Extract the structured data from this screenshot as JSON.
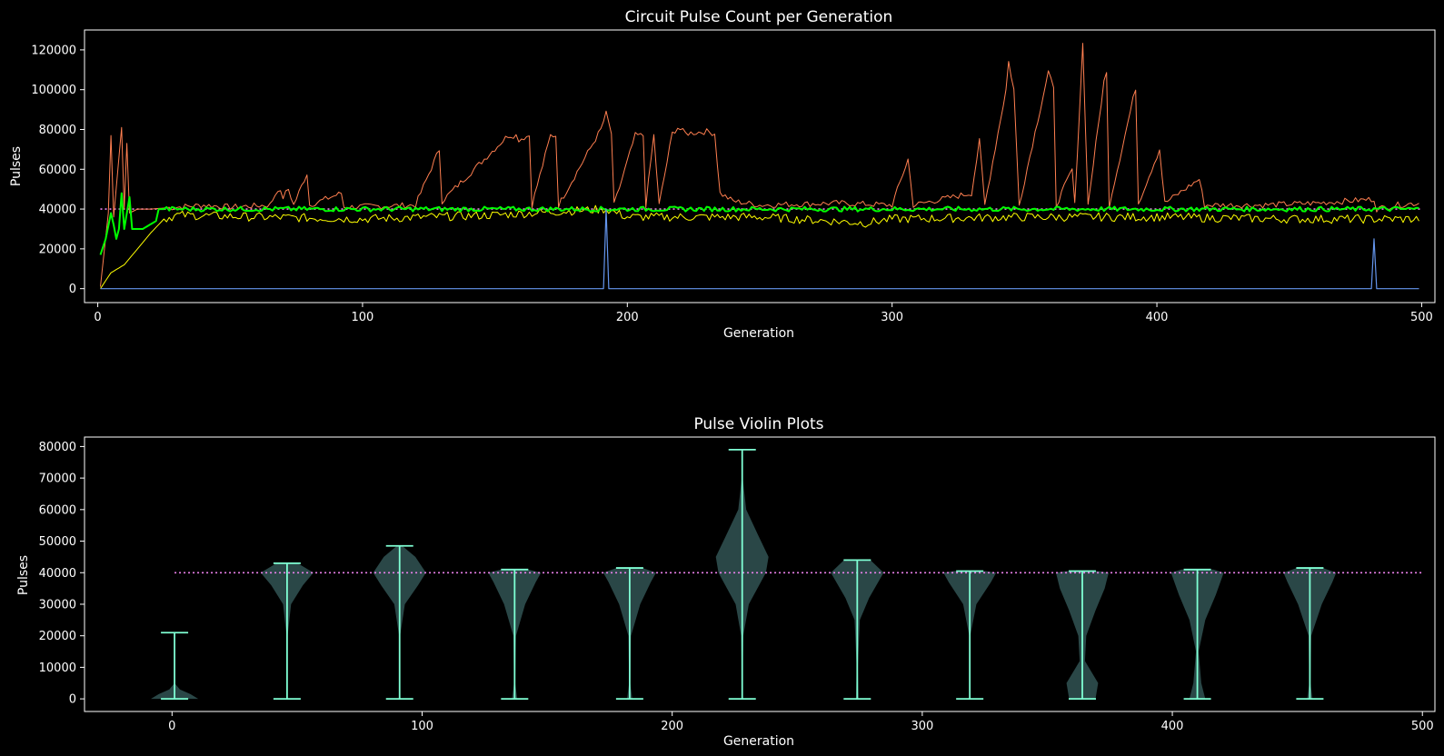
{
  "chart_data": [
    {
      "type": "line",
      "title": "Circuit Pulse Count per Generation",
      "xlabel": "Generation",
      "ylabel": "Pulses",
      "xlim": [
        -5,
        505
      ],
      "ylim": [
        -7000,
        130000
      ],
      "xticks": [
        0,
        100,
        200,
        300,
        400,
        500
      ],
      "yticks": [
        0,
        20000,
        40000,
        60000,
        80000,
        100000,
        120000
      ],
      "grid": false,
      "target_line": {
        "y": 40000,
        "x_range": [
          1,
          500
        ],
        "color": "#ee82ee",
        "style": "dotted"
      },
      "series": [
        {
          "color": "#ff7f50",
          "sample_points": [
            [
              1,
              1000
            ],
            [
              4,
              38000
            ],
            [
              5,
              77000
            ],
            [
              6,
              36000
            ],
            [
              9,
              81000
            ],
            [
              10,
              40000
            ],
            [
              11,
              73000
            ],
            [
              12,
              38000
            ],
            [
              15,
              40000
            ],
            [
              20,
              40000
            ],
            [
              30,
              41000
            ],
            [
              40,
              42000
            ],
            [
              50,
              41000
            ],
            [
              65,
              42000
            ],
            [
              68,
              50000
            ],
            [
              70,
              46000
            ],
            [
              72,
              50000
            ],
            [
              74,
              42000
            ],
            [
              79,
              58000
            ],
            [
              80,
              42000
            ],
            [
              92,
              48000
            ],
            [
              93,
              41000
            ],
            [
              120,
              42000
            ],
            [
              129,
              70000
            ],
            [
              130,
              44000
            ],
            [
              155,
              77000
            ],
            [
              158,
              77000
            ],
            [
              159,
              75000
            ],
            [
              163,
              77000
            ],
            [
              164,
              42000
            ],
            [
              171,
              77000
            ],
            [
              173,
              77000
            ],
            [
              174,
              42000
            ],
            [
              190,
              80000
            ],
            [
              192,
              88000
            ],
            [
              194,
              78000
            ],
            [
              195,
              42000
            ],
            [
              203,
              77000
            ],
            [
              206,
              77000
            ],
            [
              207,
              42000
            ],
            [
              210,
              77000
            ],
            [
              212,
              42000
            ],
            [
              217,
              78000
            ],
            [
              219,
              81000
            ],
            [
              222,
              78000
            ],
            [
              230,
              79000
            ],
            [
              233,
              78000
            ],
            [
              235,
              48000
            ],
            [
              240,
              44000
            ],
            [
              250,
              42000
            ],
            [
              280,
              43000
            ],
            [
              300,
              42000
            ],
            [
              306,
              65000
            ],
            [
              308,
              42000
            ],
            [
              330,
              48000
            ],
            [
              333,
              74000
            ],
            [
              335,
              42000
            ],
            [
              343,
              100000
            ],
            [
              344,
              114000
            ],
            [
              346,
              100000
            ],
            [
              348,
              42000
            ],
            [
              359,
              109000
            ],
            [
              361,
              100000
            ],
            [
              362,
              42000
            ],
            [
              368,
              60000
            ],
            [
              369,
              42000
            ],
            [
              372,
              123000
            ],
            [
              374,
              42000
            ],
            [
              380,
              104000
            ],
            [
              381,
              108000
            ],
            [
              382,
              42000
            ],
            [
              392,
              101000
            ],
            [
              393,
              43000
            ],
            [
              401,
              70000
            ],
            [
              403,
              43000
            ],
            [
              416,
              55000
            ],
            [
              418,
              42000
            ],
            [
              440,
              42000
            ],
            [
              460,
              43000
            ],
            [
              482,
              45000
            ],
            [
              483,
              40000
            ],
            [
              490,
              42000
            ],
            [
              499,
              43000
            ]
          ]
        },
        {
          "color": "#ffff00",
          "sample_points": [
            [
              1,
              0
            ],
            [
              5,
              8000
            ],
            [
              10,
              12000
            ],
            [
              15,
              20000
            ],
            [
              20,
              28000
            ],
            [
              25,
              35000
            ],
            [
              30,
              37000
            ],
            [
              60,
              36000
            ],
            [
              100,
              35000
            ],
            [
              150,
              37000
            ],
            [
              192,
              40000
            ],
            [
              200,
              36000
            ],
            [
              250,
              36000
            ],
            [
              290,
              33000
            ],
            [
              300,
              35000
            ],
            [
              350,
              36000
            ],
            [
              400,
              36000
            ],
            [
              450,
              35000
            ],
            [
              499,
              35000
            ]
          ]
        },
        {
          "color": "#00ff00",
          "sample_points": [
            [
              1,
              17000
            ],
            [
              3,
              25000
            ],
            [
              5,
              38000
            ],
            [
              6,
              32000
            ],
            [
              7,
              25000
            ],
            [
              8,
              30000
            ],
            [
              9,
              48000
            ],
            [
              10,
              30000
            ],
            [
              12,
              46000
            ],
            [
              13,
              30000
            ],
            [
              17,
              30000
            ],
            [
              22,
              34000
            ],
            [
              23,
              40000
            ],
            [
              30,
              40000
            ],
            [
              100,
              40000
            ],
            [
              300,
              40000
            ],
            [
              499,
              40000
            ]
          ]
        },
        {
          "color": "#6495ed",
          "sample_points": [
            [
              1,
              0
            ],
            [
              191,
              0
            ],
            [
              192,
              40000
            ],
            [
              193,
              0
            ],
            [
              481,
              0
            ],
            [
              482,
              25000
            ],
            [
              483,
              0
            ],
            [
              499,
              0
            ]
          ]
        }
      ]
    },
    {
      "type": "violin",
      "title": "Pulse Violin Plots",
      "xlabel": "Generation",
      "ylabel": "Pulses",
      "xlim": [
        -35,
        505
      ],
      "ylim": [
        -4000,
        83000
      ],
      "xticks": [
        0,
        100,
        200,
        300,
        400,
        500
      ],
      "yticks": [
        0,
        10000,
        20000,
        30000,
        40000,
        50000,
        60000,
        70000,
        80000
      ],
      "grid": false,
      "target_line": {
        "y": 40000,
        "x_range": [
          1,
          500
        ],
        "color": "#ee82ee",
        "style": "dotted"
      },
      "violins": [
        {
          "x": 1,
          "min": 0,
          "max": 21000
        },
        {
          "x": 46,
          "min": 0,
          "max": 43000
        },
        {
          "x": 91,
          "min": 0,
          "max": 48500
        },
        {
          "x": 137,
          "min": 0,
          "max": 41000
        },
        {
          "x": 183,
          "min": 0,
          "max": 41500
        },
        {
          "x": 228,
          "min": 0,
          "max": 79000
        },
        {
          "x": 274,
          "min": 0,
          "max": 44000
        },
        {
          "x": 319,
          "min": 0,
          "max": 40500
        },
        {
          "x": 364,
          "min": 0,
          "max": 40500
        },
        {
          "x": 410,
          "min": 0,
          "max": 41000
        },
        {
          "x": 455,
          "min": 0,
          "max": 41500
        }
      ]
    }
  ]
}
